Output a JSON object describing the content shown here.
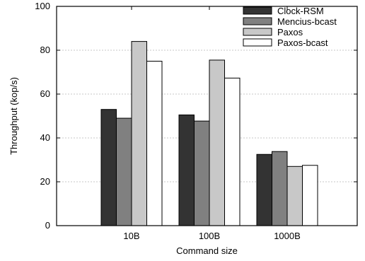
{
  "chart_data": {
    "type": "bar",
    "title": "",
    "xlabel": "Command size",
    "ylabel": "Throughput (kop/s)",
    "ylim": [
      0,
      100
    ],
    "yticks": [
      0,
      20,
      40,
      60,
      80,
      100
    ],
    "grid": true,
    "legend_position": "top-right",
    "categories": [
      "10B",
      "100B",
      "1000B"
    ],
    "series": [
      {
        "name": "Clock-RSM",
        "color": "#333333",
        "values": [
          53,
          50.5,
          32.5
        ]
      },
      {
        "name": "Mencius-bcast",
        "color": "#808080",
        "values": [
          49,
          47.7,
          33.8
        ]
      },
      {
        "name": "Paxos",
        "color": "#c8c8c8",
        "values": [
          84,
          75.5,
          27
        ]
      },
      {
        "name": "Paxos-bcast",
        "color": "#ffffff",
        "values": [
          75,
          67.3,
          27.5
        ]
      }
    ]
  }
}
